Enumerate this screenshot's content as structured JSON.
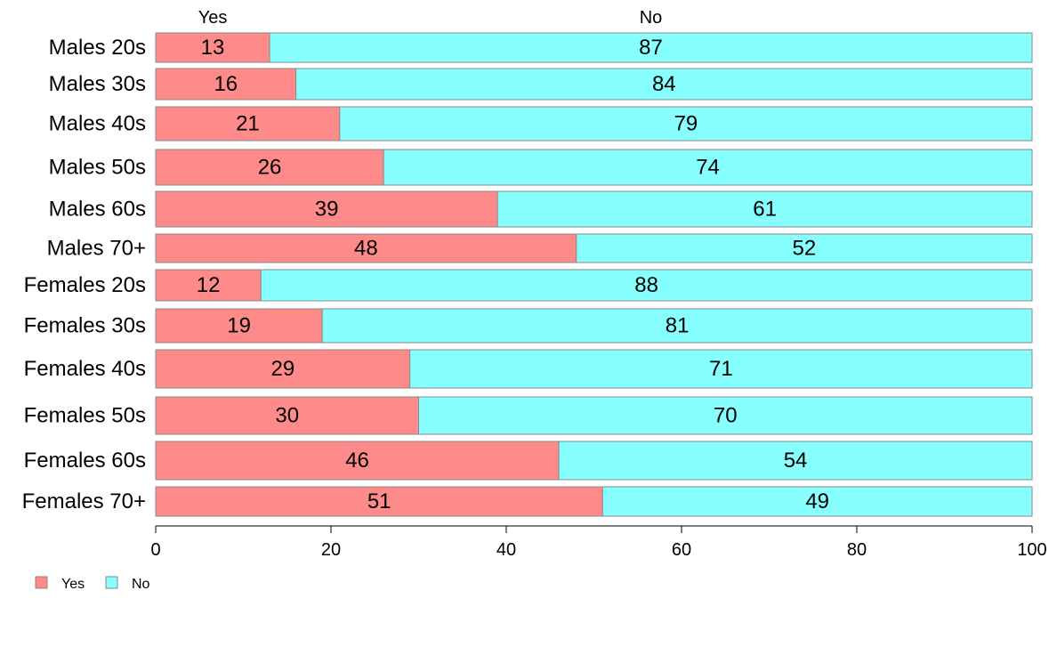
{
  "chart_data": {
    "type": "bar",
    "orientation": "horizontal",
    "stacked": true,
    "categories": [
      "Males 20s",
      "Males 30s",
      "Males 40s",
      "Males 50s",
      "Males 60s",
      "Males 70+",
      "Females 20s",
      "Females 30s",
      "Females 40s",
      "Females 50s",
      "Females 60s",
      "Females 70+"
    ],
    "series": [
      {
        "name": "Yes",
        "color": "#FF8A8A",
        "values": [
          13,
          16,
          21,
          26,
          39,
          48,
          12,
          19,
          29,
          30,
          46,
          51
        ],
        "labels": [
          "13",
          "16",
          "21",
          "26",
          "39",
          "48",
          "12",
          "19",
          "29",
          "30",
          "46",
          "51"
        ]
      },
      {
        "name": "No",
        "color": "#88FFFF",
        "values": [
          87,
          84,
          79,
          74,
          61,
          52,
          88,
          81,
          71,
          70,
          54,
          49
        ],
        "labels": [
          "87",
          "84",
          "79",
          "74",
          "61",
          "52",
          "88",
          "81",
          "71",
          "70",
          "54",
          "49"
        ]
      }
    ],
    "top_labels": [
      "Yes",
      "No"
    ],
    "xlim": [
      0,
      100
    ],
    "xticks": [
      0,
      20,
      40,
      60,
      80,
      100
    ],
    "xtick_labels": [
      "0",
      "20",
      "40",
      "60",
      "80",
      "100"
    ],
    "grid": false,
    "legend": {
      "position": "bottom-left",
      "entries": [
        "Yes",
        "No"
      ]
    }
  }
}
